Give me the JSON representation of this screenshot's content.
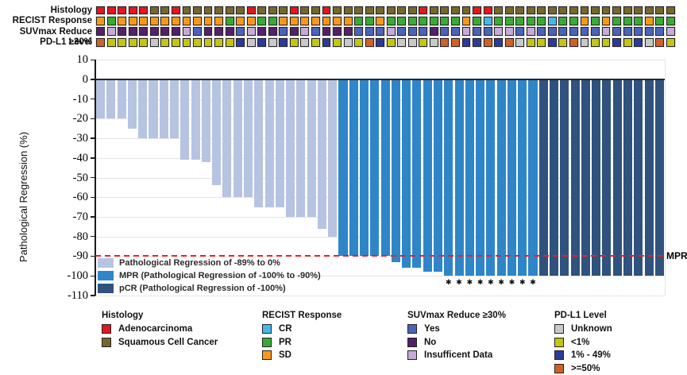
{
  "palette": {
    "adeno": "#e0181f",
    "squamous": "#75672e",
    "cr": "#47b7e9",
    "pr": "#3baa35",
    "sd": "#f5991d",
    "suv_yes": "#4c63b8",
    "suv_no": "#532168",
    "suv_insufficient": "#c6abd9",
    "pd_unknown": "#c9c9c9",
    "pd_lt1": "#c3c614",
    "pd_1_49": "#2c3a9c",
    "pd_ge50": "#d2602a",
    "bar_light": "#b6c4e2",
    "bar_mpr": "#2e86c8",
    "bar_pcr": "#2f527e",
    "mpr_line": "#ea2127",
    "grid": "#e4e4e4"
  },
  "tracks": {
    "rows": [
      {
        "label": "Histology",
        "cells": [
          "adeno",
          "adeno",
          "adeno",
          "adeno",
          "adeno",
          "squamous",
          "squamous",
          "adeno",
          "squamous",
          "squamous",
          "squamous",
          "squamous",
          "squamous",
          "squamous",
          "adeno",
          "squamous",
          "squamous",
          "squamous",
          "adeno",
          "squamous",
          "squamous",
          "adeno",
          "squamous",
          "squamous",
          "squamous",
          "squamous",
          "squamous",
          "squamous",
          "squamous",
          "squamous",
          "adeno",
          "squamous",
          "squamous",
          "squamous",
          "squamous",
          "adeno",
          "adeno",
          "squamous",
          "squamous",
          "squamous",
          "squamous",
          "squamous",
          "squamous",
          "squamous",
          "squamous",
          "squamous",
          "squamous",
          "squamous",
          "squamous",
          "squamous",
          "squamous",
          "squamous",
          "squamous",
          "squamous"
        ]
      },
      {
        "label": "RECIST Response",
        "cells": [
          "sd",
          "pr",
          "sd",
          "sd",
          "sd",
          "sd",
          "sd",
          "sd",
          "sd",
          "sd",
          "sd",
          "sd",
          "pr",
          "sd",
          "sd",
          "pr",
          "pr",
          "sd",
          "sd",
          "sd",
          "sd",
          "sd",
          "sd",
          "sd",
          "pr",
          "pr",
          "sd",
          "pr",
          "pr",
          "pr",
          "pr",
          "pr",
          "pr",
          "pr",
          "sd",
          "pr",
          "cr",
          "pr",
          "pr",
          "pr",
          "pr",
          "pr",
          "cr",
          "pr",
          "pr",
          "sd",
          "pr",
          "sd",
          "pr",
          "pr",
          "pr",
          "sd",
          "pr",
          "pr"
        ]
      },
      {
        "label": "SUVmax Reduce ≥30%",
        "cells": [
          "suv_no",
          "suv_insufficient",
          "suv_no",
          "suv_no",
          "suv_no",
          "suv_no",
          "suv_no",
          "suv_no",
          "suv_insufficient",
          "suv_yes",
          "suv_no",
          "suv_no",
          "suv_no",
          "suv_yes",
          "suv_insufficient",
          "suv_no",
          "suv_no",
          "suv_yes",
          "suv_no",
          "suv_insufficient",
          "suv_yes",
          "suv_no",
          "suv_no",
          "suv_no",
          "suv_yes",
          "suv_yes",
          "suv_yes",
          "suv_insufficient",
          "suv_yes",
          "suv_yes",
          "suv_yes",
          "suv_no",
          "suv_yes",
          "suv_yes",
          "suv_insufficient",
          "suv_yes",
          "suv_yes",
          "suv_insufficient",
          "suv_insufficient",
          "suv_yes",
          "suv_insufficient",
          "suv_yes",
          "suv_yes",
          "suv_yes",
          "suv_yes",
          "suv_yes",
          "suv_yes",
          "suv_insufficient",
          "suv_yes",
          "suv_yes",
          "suv_yes",
          "suv_yes",
          "suv_yes",
          "suv_insufficient"
        ]
      },
      {
        "label": "PD-L1 Level",
        "cells": [
          "pd_ge50",
          "pd_lt1",
          "pd_lt1",
          "pd_lt1",
          "pd_lt1",
          "pd_unknown",
          "pd_lt1",
          "pd_lt1",
          "pd_lt1",
          "pd_lt1",
          "pd_lt1",
          "pd_lt1",
          "pd_lt1",
          "pd_1_49",
          "pd_unknown",
          "pd_1_49",
          "pd_unknown",
          "pd_1_49",
          "pd_lt1",
          "pd_unknown",
          "pd_lt1",
          "pd_1_49",
          "pd_lt1",
          "pd_unknown",
          "pd_lt1",
          "pd_ge50",
          "pd_1_49",
          "pd_lt1",
          "pd_unknown",
          "pd_unknown",
          "pd_lt1",
          "pd_unknown",
          "pd_ge50",
          "pd_ge50",
          "pd_1_49",
          "pd_1_49",
          "pd_ge50",
          "pd_1_49",
          "pd_ge50",
          "pd_unknown",
          "pd_lt1",
          "pd_lt1",
          "pd_1_49",
          "pd_lt1",
          "pd_ge50",
          "pd_unknown",
          "pd_lt1",
          "pd_lt1",
          "pd_1_49",
          "pd_lt1",
          "pd_1_49",
          "pd_unknown",
          "pd_ge50",
          "pd_lt1"
        ]
      }
    ]
  },
  "chart_data": {
    "type": "bar",
    "subtype": "waterfall",
    "title": "",
    "xlabel": "",
    "ylabel": "Pathological Regression (%)",
    "ylim": [
      -110,
      10
    ],
    "yticks": [
      10,
      0,
      -10,
      -20,
      -30,
      -40,
      -50,
      -60,
      -70,
      -80,
      -90,
      -100,
      -110
    ],
    "grid": "horizontal-light",
    "mpr_line_value": -90,
    "mpr_label": "MPR",
    "asterisk_char": "✱",
    "asterisk_columns": [
      33,
      34,
      35,
      36,
      37,
      38,
      39,
      40,
      41
    ],
    "n_patients": 54,
    "values": [
      -20,
      -20,
      -20,
      -25,
      -30,
      -30,
      -30,
      -30,
      -41,
      -41,
      -42,
      -54,
      -60,
      -60,
      -60,
      -65,
      -65,
      -65,
      -70,
      -70,
      -70,
      -76,
      -80,
      -90,
      -90,
      -90,
      -90,
      -90,
      -93,
      -96,
      -96,
      -98,
      -98,
      -100,
      -100,
      -100,
      -100,
      -100,
      -100,
      -100,
      -100,
      -100,
      -100,
      -100,
      -100,
      -100,
      -100,
      -100,
      -100,
      -100,
      -100,
      -100,
      -100,
      -100
    ],
    "categories": [
      "light",
      "light",
      "light",
      "light",
      "light",
      "light",
      "light",
      "light",
      "light",
      "light",
      "light",
      "light",
      "light",
      "light",
      "light",
      "light",
      "light",
      "light",
      "light",
      "light",
      "light",
      "light",
      "light",
      "mpr",
      "mpr",
      "mpr",
      "mpr",
      "mpr",
      "mpr",
      "mpr",
      "mpr",
      "mpr",
      "mpr",
      "mpr",
      "mpr",
      "mpr",
      "mpr",
      "mpr",
      "mpr",
      "mpr",
      "mpr",
      "mpr",
      "pcr",
      "pcr",
      "pcr",
      "pcr",
      "pcr",
      "pcr",
      "pcr",
      "pcr",
      "pcr",
      "pcr",
      "pcr",
      "pcr"
    ],
    "legend": [
      {
        "label": "Pathological Regression of -89% to 0%",
        "color_key": "bar_light"
      },
      {
        "label": "MPR (Pathological Regression of -100% to -90%)",
        "color_key": "bar_mpr"
      },
      {
        "label": "pCR (Pathological Regression of -100%)",
        "color_key": "bar_pcr"
      }
    ]
  },
  "bottom_legends": [
    {
      "title": "Histology",
      "items": [
        {
          "label": "Adenocarcinoma",
          "color_key": "adeno"
        },
        {
          "label": "Squamous Cell Cancer",
          "color_key": "squamous"
        }
      ]
    },
    {
      "title": "RECIST Response",
      "items": [
        {
          "label": "CR",
          "color_key": "cr"
        },
        {
          "label": "PR",
          "color_key": "pr"
        },
        {
          "label": "SD",
          "color_key": "sd"
        }
      ]
    },
    {
      "title": "SUVmax Reduce ≥30%",
      "items": [
        {
          "label": "Yes",
          "color_key": "suv_yes"
        },
        {
          "label": "No",
          "color_key": "suv_no"
        },
        {
          "label": "Insufficent Data",
          "color_key": "suv_insufficient"
        }
      ]
    },
    {
      "title": "PD-L1 Level",
      "items": [
        {
          "label": "Unknown",
          "color_key": "pd_unknown"
        },
        {
          "label": "<1%",
          "color_key": "pd_lt1"
        },
        {
          "label": "1% - 49%",
          "color_key": "pd_1_49"
        },
        {
          "label": ">=50%",
          "color_key": "pd_ge50"
        }
      ]
    }
  ]
}
